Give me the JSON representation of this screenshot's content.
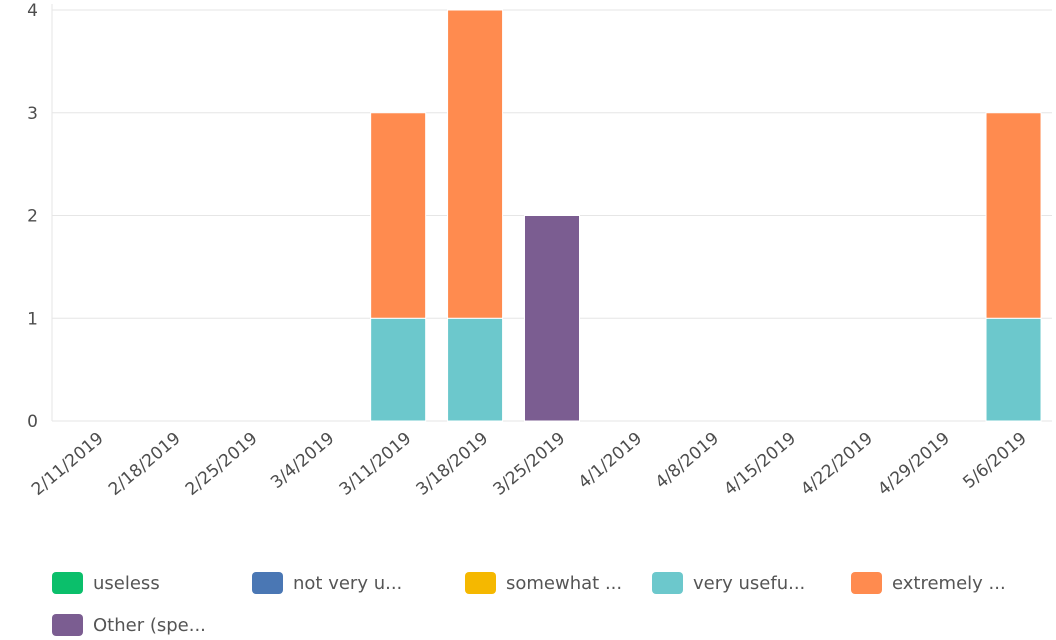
{
  "chart_data": {
    "type": "bar",
    "stacked": true,
    "categories": [
      "2/11/2019",
      "2/18/2019",
      "2/25/2019",
      "3/4/2019",
      "3/11/2019",
      "3/18/2019",
      "3/25/2019",
      "4/1/2019",
      "4/8/2019",
      "4/15/2019",
      "4/22/2019",
      "4/29/2019",
      "5/6/2019"
    ],
    "series": [
      {
        "name": "useless",
        "color": "#0bbf6b",
        "values": [
          0,
          0,
          0,
          0,
          0,
          0,
          0,
          0,
          0,
          0,
          0,
          0,
          0
        ]
      },
      {
        "name": "not very u...",
        "color": "#4a77b4",
        "values": [
          0,
          0,
          0,
          0,
          0,
          0,
          0,
          0,
          0,
          0,
          0,
          0,
          0
        ]
      },
      {
        "name": "somewhat ...",
        "color": "#f5b800",
        "values": [
          0,
          0,
          0,
          0,
          0,
          0,
          0,
          0,
          0,
          0,
          0,
          0,
          0
        ]
      },
      {
        "name": "very usefu...",
        "color": "#6cc8cc",
        "values": [
          0,
          0,
          0,
          0,
          1,
          1,
          0,
          0,
          0,
          0,
          0,
          0,
          1
        ]
      },
      {
        "name": "extremely ...",
        "color": "#ff8b4f",
        "values": [
          0,
          0,
          0,
          0,
          2,
          3,
          0,
          0,
          0,
          0,
          0,
          0,
          2
        ]
      },
      {
        "name": "Other (spe...",
        "color": "#7b5d91",
        "values": [
          0,
          0,
          0,
          0,
          0,
          0,
          2,
          0,
          0,
          0,
          0,
          0,
          0
        ]
      }
    ],
    "yticks": [
      0,
      1,
      2,
      3,
      4
    ],
    "ylim": [
      0,
      4
    ],
    "grid": true,
    "legend": "bottom"
  }
}
